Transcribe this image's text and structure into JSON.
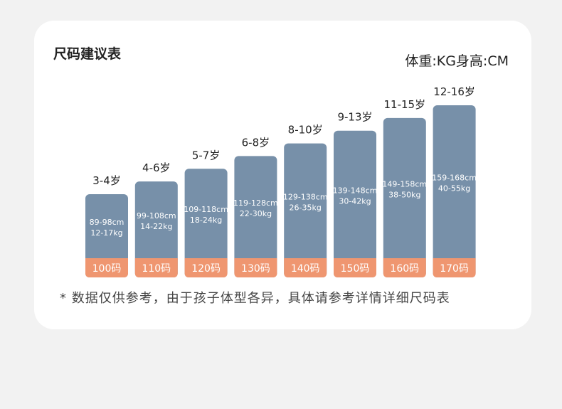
{
  "header": {
    "title": "尺码建议表",
    "units": "体重:KG身高:CM"
  },
  "note": "* 数据仅供参考，由于孩子体型各异，具体请参考详情详细尺码表",
  "colors": {
    "bar": "#7790a9",
    "footer": "#ef9670"
  },
  "chart_data": {
    "type": "bar",
    "categories": [
      "100码",
      "110码",
      "120码",
      "130码",
      "140码",
      "150码",
      "160码",
      "170码"
    ],
    "ages": [
      "3-4岁",
      "4-6岁",
      "5-7岁",
      "6-8岁",
      "8-10岁",
      "9-13岁",
      "11-15岁",
      "12-16岁"
    ],
    "heights": [
      "89-98cm",
      "99-108cm",
      "109-118cm",
      "119-128cm",
      "129-138cm",
      "139-148cm",
      "149-158cm",
      "159-168cm"
    ],
    "weights": [
      "12-17kg",
      "14-22kg",
      "18-24kg",
      "22-30kg",
      "26-35kg",
      "30-42kg",
      "38-50kg",
      "40-55kg"
    ],
    "values": [
      98,
      108,
      118,
      128,
      138,
      148,
      158,
      168
    ]
  }
}
